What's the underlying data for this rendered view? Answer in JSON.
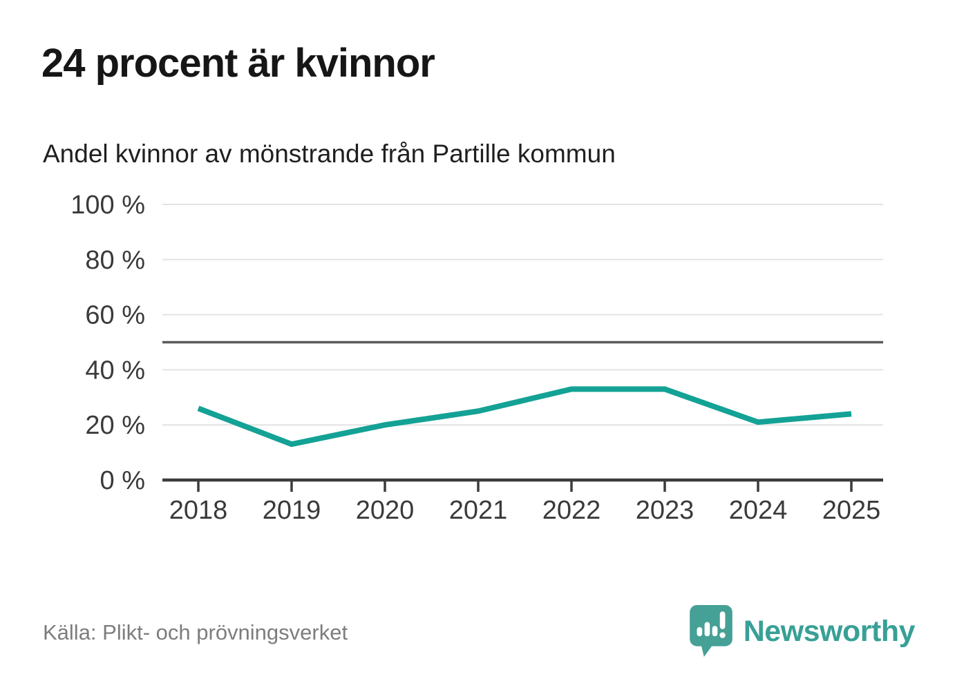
{
  "page": {
    "title": "24 procent är kvinnor",
    "subtitle": "Andel kvinnor av mönstrande från Partille kommun",
    "source": "Källa: Plikt- och prövningsverket",
    "brand": "Newsworthy"
  },
  "colors": {
    "line": "#13a295",
    "grid": "#e3e3e3",
    "reference_line": "#595959",
    "axis": "#3b3b3b",
    "tick_text": "#3a3a3a",
    "brand_teal": "#45a096",
    "brand_text": "#38a096"
  },
  "chart_data": {
    "type": "line",
    "title": "24 procent är kvinnor",
    "subtitle": "Andel kvinnor av mönstrande från Partille kommun",
    "categories": [
      "2018",
      "2019",
      "2020",
      "2021",
      "2022",
      "2023",
      "2024",
      "2025"
    ],
    "series": [
      {
        "name": "Andel kvinnor av mönstrande, Partille kommun",
        "values": [
          26,
          13,
          20,
          25,
          33,
          33,
          21,
          24
        ]
      }
    ],
    "unit": "%",
    "ylim": [
      0,
      100
    ],
    "yticks": [
      0,
      20,
      40,
      60,
      80,
      100
    ],
    "ytick_suffix": " %",
    "reference_line": 50,
    "grid": true,
    "legend": false,
    "xlabel": "",
    "ylabel": ""
  }
}
